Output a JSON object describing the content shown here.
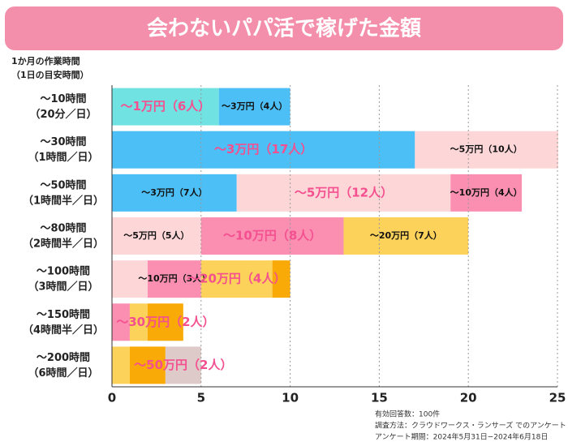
{
  "chart_data": {
    "type": "stacked-bar-horizontal",
    "title": "会わないパパ活で稼げた金額",
    "y_axis_label": [
      "1か月の作業時間",
      "（1日の目安時間）"
    ],
    "categories": [
      [
        "〜10時間",
        "（20分／日）"
      ],
      [
        "〜30時間",
        "（1時間／日）"
      ],
      [
        "〜50時間",
        "（1時間半／日）"
      ],
      [
        "〜80時間",
        "（2時間半／日）"
      ],
      [
        "〜100時間",
        "（3時間／日）"
      ],
      [
        "〜150時間",
        "（4時間半／日）"
      ],
      [
        "〜200時間",
        "（6時間／日）"
      ]
    ],
    "series": [
      {
        "color": "#70e2e2",
        "values": [
          6,
          null,
          null,
          null,
          null,
          null,
          null
        ],
        "value_labels": [
          "〜1万円（6人）",
          null,
          null,
          null,
          null,
          null,
          null
        ]
      },
      {
        "color": "#4cbff6",
        "values": [
          4,
          17,
          7,
          null,
          null,
          null,
          null
        ],
        "value_labels": [
          "〜3万円（4人）",
          "〜3万円（17人）",
          "〜3万円（7人）",
          null,
          null,
          null,
          null
        ]
      },
      {
        "color": "#fdd6d8",
        "values": [
          null,
          10,
          12,
          5,
          2,
          null,
          null
        ],
        "value_labels": [
          null,
          "〜5万円（10人）",
          "〜5万円（12人）",
          "〜5万円（5人）",
          null,
          null,
          null
        ]
      },
      {
        "color": "#fb8fb2",
        "values": [
          null,
          null,
          4,
          8,
          3,
          1,
          null
        ],
        "value_labels": [
          null,
          null,
          "〜10万円（4人）",
          "〜10万円（8人）",
          "〜10万円（3人）",
          null,
          null
        ]
      },
      {
        "color": "#fdd25a",
        "values": [
          null,
          null,
          null,
          7,
          4,
          1,
          1
        ],
        "value_labels": [
          null,
          null,
          null,
          "〜20万円（7人）",
          "〜20万円（4人）",
          null,
          null
        ]
      },
      {
        "color": "#f9aa06",
        "values": [
          null,
          null,
          null,
          null,
          1,
          2,
          2
        ],
        "value_labels": [
          null,
          null,
          null,
          null,
          null,
          "〜30万円（2人）",
          null
        ]
      },
      {
        "color": "#decac8",
        "values": [
          null,
          null,
          null,
          null,
          null,
          null,
          2
        ],
        "value_labels": [
          null,
          null,
          null,
          null,
          null,
          null,
          "〜50万円（2人）"
        ]
      }
    ],
    "highlight": [
      0,
      1,
      2,
      3,
      4,
      5,
      6
    ],
    "highlight_color": "#f4508f",
    "xlim": [
      0,
      25
    ],
    "xticks": [
      0,
      5,
      10,
      15,
      20,
      25
    ],
    "grid": true,
    "notes": [
      "有効回答数：100件",
      "調査方法：クラウドワークス・ランサーズ でのアンケート",
      "アンケート期間：2024年5月31日−2024年6月18日"
    ]
  }
}
